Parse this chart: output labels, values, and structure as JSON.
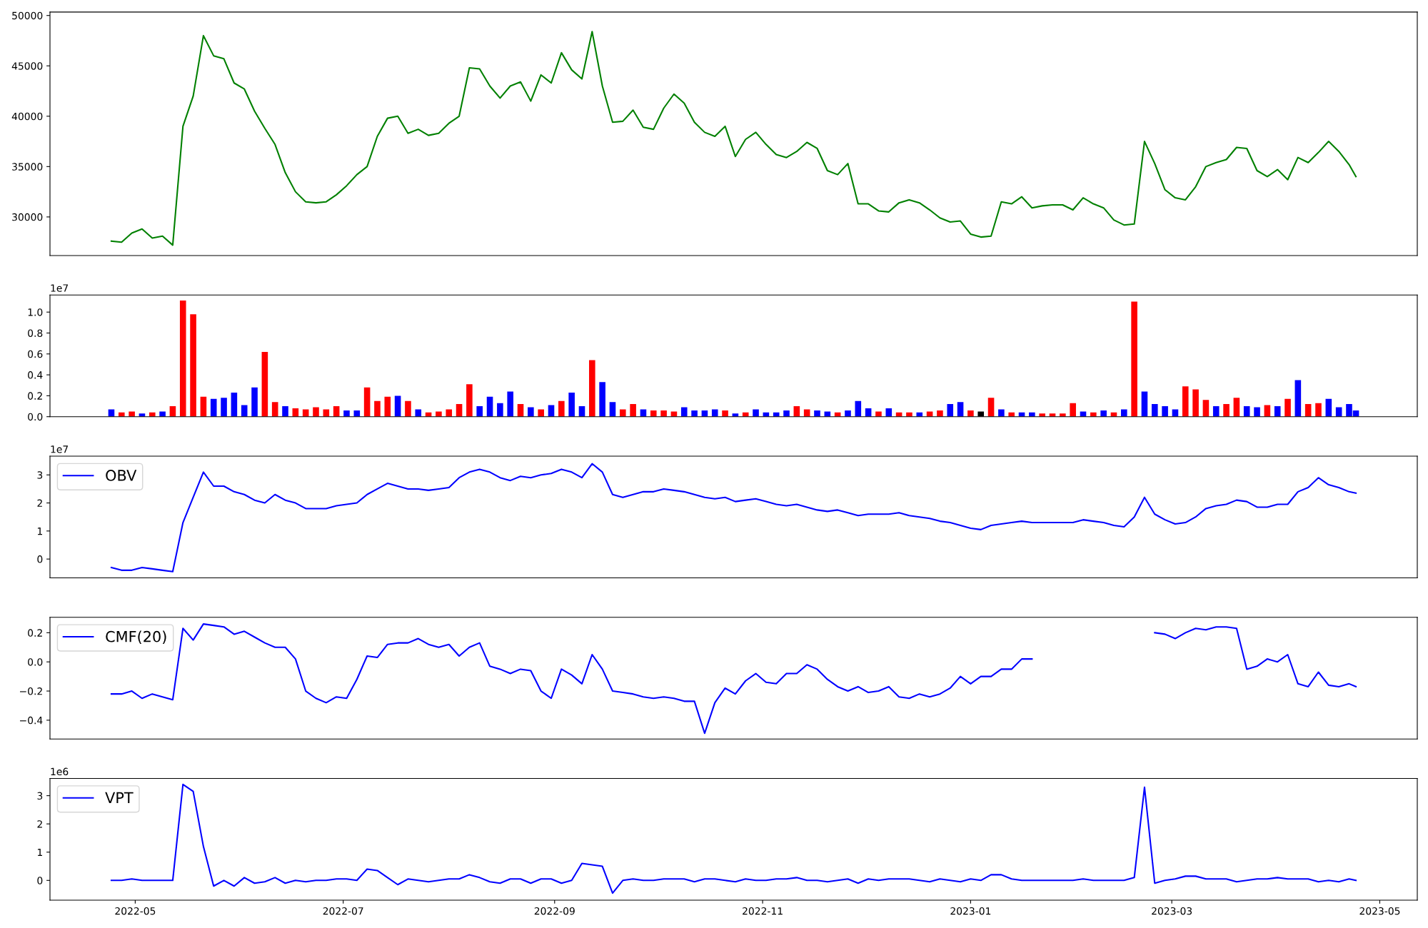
{
  "chart_data": [
    {
      "type": "line",
      "xlim": [
        "2022-04-06",
        "2023-05-12"
      ],
      "ylim": [
        26170,
        50340
      ],
      "yticks": [
        30000,
        35000,
        40000,
        45000,
        50000
      ],
      "tick_labels": "y",
      "legend": false,
      "grid": false,
      "x": [
        "2022-04-24",
        "2022-04-27",
        "2022-04-30",
        "2022-05-03",
        "2022-05-06",
        "2022-05-09",
        "2022-05-12",
        "2022-05-15",
        "2022-05-18",
        "2022-05-21",
        "2022-05-24",
        "2022-05-27",
        "2022-05-30",
        "2022-06-02",
        "2022-06-05",
        "2022-06-08",
        "2022-06-11",
        "2022-06-14",
        "2022-06-17",
        "2022-06-20",
        "2022-06-23",
        "2022-06-26",
        "2022-06-29",
        "2022-07-02",
        "2022-07-05",
        "2022-07-08",
        "2022-07-11",
        "2022-07-14",
        "2022-07-17",
        "2022-07-20",
        "2022-07-23",
        "2022-07-26",
        "2022-07-29",
        "2022-08-01",
        "2022-08-04",
        "2022-08-07",
        "2022-08-10",
        "2022-08-13",
        "2022-08-16",
        "2022-08-19",
        "2022-08-22",
        "2022-08-25",
        "2022-08-28",
        "2022-08-31",
        "2022-09-03",
        "2022-09-06",
        "2022-09-09",
        "2022-09-12",
        "2022-09-15",
        "2022-09-18",
        "2022-09-21",
        "2022-09-24",
        "2022-09-27",
        "2022-09-30",
        "2022-10-03",
        "2022-10-06",
        "2022-10-09",
        "2022-10-12",
        "2022-10-15",
        "2022-10-18",
        "2022-10-21",
        "2022-10-24",
        "2022-10-27",
        "2022-10-30",
        "2022-11-02",
        "2022-11-05",
        "2022-11-08",
        "2022-11-11",
        "2022-11-14",
        "2022-11-17",
        "2022-11-20",
        "2022-11-23",
        "2022-11-26",
        "2022-11-29",
        "2022-12-02",
        "2022-12-05",
        "2022-12-08",
        "2022-12-11",
        "2022-12-14",
        "2022-12-17",
        "2022-12-20",
        "2022-12-23",
        "2022-12-26",
        "2022-12-29",
        "2023-01-01",
        "2023-01-04",
        "2023-01-07",
        "2023-01-10",
        "2023-01-13",
        "2023-01-16",
        "2023-01-19",
        "2023-01-22",
        "2023-01-25",
        "2023-01-28",
        "2023-01-31",
        "2023-02-03",
        "2023-02-06",
        "2023-02-09",
        "2023-02-12",
        "2023-02-15",
        "2023-02-18",
        "2023-02-21",
        "2023-02-24",
        "2023-02-27",
        "2023-03-02",
        "2023-03-05",
        "2023-03-08",
        "2023-03-11",
        "2023-03-14",
        "2023-03-17",
        "2023-03-20",
        "2023-03-23",
        "2023-03-26",
        "2023-03-29",
        "2023-04-01",
        "2023-04-04",
        "2023-04-07",
        "2023-04-10",
        "2023-04-13",
        "2023-04-16",
        "2023-04-19",
        "2023-04-22",
        "2023-04-24"
      ],
      "series": [
        {
          "color": "#008000",
          "values": [
            27600,
            27500,
            28400,
            28800,
            27900,
            28100,
            27200,
            39000,
            42000,
            48000,
            46000,
            45700,
            43300,
            42700,
            40500,
            38800,
            37200,
            34400,
            32500,
            31500,
            31400,
            31500,
            32200,
            33100,
            34200,
            35000,
            38000,
            39800,
            40000,
            38300,
            38700,
            38100,
            38300,
            39300,
            40000,
            44800,
            44700,
            43000,
            41800,
            43000,
            43400,
            41500,
            44100,
            43300,
            46300,
            44600,
            43700,
            48400,
            43000,
            39400,
            39500,
            40600,
            38900,
            38700,
            40800,
            42200,
            41300,
            39400,
            38400,
            38000,
            39000,
            36000,
            37700,
            38400,
            37200,
            36200,
            35900,
            36500,
            37400,
            36800,
            34600,
            34200,
            35300,
            31300,
            31300,
            30600,
            30500,
            31400,
            31700,
            31400,
            30700,
            29900,
            29500,
            29600,
            28300,
            28000,
            28100,
            31500,
            31300,
            32000,
            30900,
            31100,
            31200,
            31200,
            30700,
            31900,
            31300,
            30900,
            29700,
            29200,
            29300,
            37500,
            35300,
            32700,
            31900,
            31700,
            33000,
            35000,
            35400,
            35700,
            36900,
            36800,
            34600,
            34000,
            34700,
            33700,
            35900,
            35400,
            36400,
            37500,
            36500,
            35200,
            34000
          ]
        }
      ]
    },
    {
      "type": "bar",
      "xlim": [
        "2022-04-06",
        "2023-05-12"
      ],
      "ylim": [
        0,
        1.164
      ],
      "yticks": [
        {
          "value": 0,
          "label": "0.0"
        },
        0.2,
        0.4,
        0.6,
        0.8,
        {
          "value": 1,
          "label": "1.0"
        }
      ],
      "tick_labels": "y",
      "legend": false,
      "grid": false,
      "annotations": [
        "1e7"
      ],
      "x": [
        "2022-04-24",
        "2022-04-27",
        "2022-04-30",
        "2022-05-03",
        "2022-05-06",
        "2022-05-09",
        "2022-05-12",
        "2022-05-15",
        "2022-05-18",
        "2022-05-21",
        "2022-05-24",
        "2022-05-27",
        "2022-05-30",
        "2022-06-02",
        "2022-06-05",
        "2022-06-08",
        "2022-06-11",
        "2022-06-14",
        "2022-06-17",
        "2022-06-20",
        "2022-06-23",
        "2022-06-26",
        "2022-06-29",
        "2022-07-02",
        "2022-07-05",
        "2022-07-08",
        "2022-07-11",
        "2022-07-14",
        "2022-07-17",
        "2022-07-20",
        "2022-07-23",
        "2022-07-26",
        "2022-07-29",
        "2022-08-01",
        "2022-08-04",
        "2022-08-07",
        "2022-08-10",
        "2022-08-13",
        "2022-08-16",
        "2022-08-19",
        "2022-08-22",
        "2022-08-25",
        "2022-08-28",
        "2022-08-31",
        "2022-09-03",
        "2022-09-06",
        "2022-09-09",
        "2022-09-12",
        "2022-09-15",
        "2022-09-18",
        "2022-09-21",
        "2022-09-24",
        "2022-09-27",
        "2022-09-30",
        "2022-10-03",
        "2022-10-06",
        "2022-10-09",
        "2022-10-12",
        "2022-10-15",
        "2022-10-18",
        "2022-10-21",
        "2022-10-24",
        "2022-10-27",
        "2022-10-30",
        "2022-11-02",
        "2022-11-05",
        "2022-11-08",
        "2022-11-11",
        "2022-11-14",
        "2022-11-17",
        "2022-11-20",
        "2022-11-23",
        "2022-11-26",
        "2022-11-29",
        "2022-12-02",
        "2022-12-05",
        "2022-12-08",
        "2022-12-11",
        "2022-12-14",
        "2022-12-17",
        "2022-12-20",
        "2022-12-23",
        "2022-12-26",
        "2022-12-29",
        "2023-01-01",
        "2023-01-04",
        "2023-01-07",
        "2023-01-10",
        "2023-01-13",
        "2023-01-16",
        "2023-01-19",
        "2023-01-22",
        "2023-01-25",
        "2023-01-28",
        "2023-01-31",
        "2023-02-03",
        "2023-02-06",
        "2023-02-09",
        "2023-02-12",
        "2023-02-15",
        "2023-02-18",
        "2023-02-21",
        "2023-02-24",
        "2023-02-27",
        "2023-03-02",
        "2023-03-05",
        "2023-03-08",
        "2023-03-11",
        "2023-03-14",
        "2023-03-17",
        "2023-03-20",
        "2023-03-23",
        "2023-03-26",
        "2023-03-29",
        "2023-04-01",
        "2023-04-04",
        "2023-04-07",
        "2023-04-10",
        "2023-04-13",
        "2023-04-16",
        "2023-04-19",
        "2023-04-22",
        "2023-04-24"
      ],
      "values": [
        0.07,
        0.04,
        0.05,
        0.03,
        0.04,
        0.05,
        0.1,
        1.11,
        0.98,
        0.19,
        0.17,
        0.18,
        0.23,
        0.11,
        0.28,
        0.62,
        0.14,
        0.1,
        0.08,
        0.07,
        0.09,
        0.07,
        0.1,
        0.06,
        0.06,
        0.28,
        0.15,
        0.19,
        0.2,
        0.15,
        0.07,
        0.04,
        0.05,
        0.07,
        0.12,
        0.31,
        0.1,
        0.19,
        0.13,
        0.24,
        0.12,
        0.09,
        0.07,
        0.11,
        0.15,
        0.23,
        0.1,
        0.54,
        0.33,
        0.14,
        0.07,
        0.12,
        0.07,
        0.06,
        0.06,
        0.05,
        0.09,
        0.06,
        0.06,
        0.07,
        0.06,
        0.03,
        0.04,
        0.07,
        0.04,
        0.04,
        0.06,
        0.1,
        0.07,
        0.06,
        0.05,
        0.04,
        0.06,
        0.15,
        0.08,
        0.05,
        0.08,
        0.04,
        0.04,
        0.04,
        0.05,
        0.06,
        0.12,
        0.14,
        0.06,
        0.05,
        0.18,
        0.07,
        0.04,
        0.04,
        0.04,
        0.03,
        0.03,
        0.03,
        0.13,
        0.05,
        0.04,
        0.06,
        0.04,
        0.07,
        1.1,
        0.24,
        0.12,
        0.1,
        0.07,
        0.29,
        0.26,
        0.16,
        0.1,
        0.12,
        0.18,
        0.1,
        0.09,
        0.11,
        0.1,
        0.17,
        0.35,
        0.12,
        0.13,
        0.17,
        0.09,
        0.12,
        0.06
      ],
      "colors": [
        "#0000ff",
        "#ff0000",
        "#ff0000",
        "#0000ff",
        "#ff0000",
        "#0000ff",
        "#ff0000",
        "#ff0000",
        "#ff0000",
        "#ff0000",
        "#0000ff",
        "#0000ff",
        "#0000ff",
        "#0000ff",
        "#0000ff",
        "#ff0000",
        "#ff0000",
        "#0000ff",
        "#ff0000",
        "#ff0000",
        "#ff0000",
        "#ff0000",
        "#ff0000",
        "#0000ff",
        "#0000ff",
        "#ff0000",
        "#ff0000",
        "#ff0000",
        "#0000ff",
        "#ff0000",
        "#0000ff",
        "#ff0000",
        "#ff0000",
        "#ff0000",
        "#ff0000",
        "#ff0000",
        "#0000ff",
        "#0000ff",
        "#0000ff",
        "#0000ff",
        "#ff0000",
        "#0000ff",
        "#ff0000",
        "#0000ff",
        "#ff0000",
        "#0000ff",
        "#0000ff",
        "#ff0000",
        "#0000ff",
        "#0000ff",
        "#ff0000",
        "#ff0000",
        "#0000ff",
        "#ff0000",
        "#ff0000",
        "#ff0000",
        "#0000ff",
        "#0000ff",
        "#0000ff",
        "#0000ff",
        "#ff0000",
        "#0000ff",
        "#ff0000",
        "#0000ff",
        "#0000ff",
        "#0000ff",
        "#0000ff",
        "#ff0000",
        "#ff0000",
        "#0000ff",
        "#0000ff",
        "#ff0000",
        "#0000ff",
        "#0000ff",
        "#0000ff",
        "#ff0000",
        "#0000ff",
        "#ff0000",
        "#ff0000",
        "#0000ff",
        "#ff0000",
        "#ff0000",
        "#0000ff",
        "#0000ff",
        "#ff0000",
        "#000000",
        "#ff0000",
        "#0000ff",
        "#ff0000",
        "#0000ff",
        "#0000ff",
        "#ff0000",
        "#ff0000",
        "#ff0000",
        "#ff0000",
        "#0000ff",
        "#ff0000",
        "#0000ff",
        "#ff0000",
        "#0000ff",
        "#ff0000",
        "#0000ff",
        "#0000ff",
        "#0000ff",
        "#0000ff",
        "#ff0000",
        "#ff0000",
        "#ff0000",
        "#0000ff",
        "#ff0000",
        "#ff0000",
        "#0000ff",
        "#0000ff",
        "#ff0000",
        "#0000ff",
        "#ff0000",
        "#0000ff",
        "#ff0000",
        "#ff0000",
        "#0000ff",
        "#0000ff",
        "#0000ff",
        "#0000ff"
      ]
    },
    {
      "type": "line",
      "xlim": [
        "2022-04-06",
        "2023-05-12"
      ],
      "ylim": [
        -0.67,
        3.67
      ],
      "yticks": [
        0,
        1,
        2,
        3
      ],
      "tick_labels": "y",
      "legend": "top left",
      "grid": false,
      "annotations": [
        "1e7"
      ],
      "x": [
        "2022-04-24",
        "2022-04-27",
        "2022-04-30",
        "2022-05-03",
        "2022-05-06",
        "2022-05-09",
        "2022-05-12",
        "2022-05-15",
        "2022-05-18",
        "2022-05-21",
        "2022-05-24",
        "2022-05-27",
        "2022-05-30",
        "2022-06-02",
        "2022-06-05",
        "2022-06-08",
        "2022-06-11",
        "2022-06-14",
        "2022-06-17",
        "2022-06-20",
        "2022-06-23",
        "2022-06-26",
        "2022-06-29",
        "2022-07-02",
        "2022-07-05",
        "2022-07-08",
        "2022-07-11",
        "2022-07-14",
        "2022-07-17",
        "2022-07-20",
        "2022-07-23",
        "2022-07-26",
        "2022-07-29",
        "2022-08-01",
        "2022-08-04",
        "2022-08-07",
        "2022-08-10",
        "2022-08-13",
        "2022-08-16",
        "2022-08-19",
        "2022-08-22",
        "2022-08-25",
        "2022-08-28",
        "2022-08-31",
        "2022-09-03",
        "2022-09-06",
        "2022-09-09",
        "2022-09-12",
        "2022-09-15",
        "2022-09-18",
        "2022-09-21",
        "2022-09-24",
        "2022-09-27",
        "2022-09-30",
        "2022-10-03",
        "2022-10-06",
        "2022-10-09",
        "2022-10-12",
        "2022-10-15",
        "2022-10-18",
        "2022-10-21",
        "2022-10-24",
        "2022-10-27",
        "2022-10-30",
        "2022-11-02",
        "2022-11-05",
        "2022-11-08",
        "2022-11-11",
        "2022-11-14",
        "2022-11-17",
        "2022-11-20",
        "2022-11-23",
        "2022-11-26",
        "2022-11-29",
        "2022-12-02",
        "2022-12-05",
        "2022-12-08",
        "2022-12-11",
        "2022-12-14",
        "2022-12-17",
        "2022-12-20",
        "2022-12-23",
        "2022-12-26",
        "2022-12-29",
        "2023-01-01",
        "2023-01-04",
        "2023-01-07",
        "2023-01-10",
        "2023-01-13",
        "2023-01-16",
        "2023-01-19",
        "2023-01-22",
        "2023-01-25",
        "2023-01-28",
        "2023-01-31",
        "2023-02-03",
        "2023-02-06",
        "2023-02-09",
        "2023-02-12",
        "2023-02-15",
        "2023-02-18",
        "2023-02-21",
        "2023-02-24",
        "2023-02-27",
        "2023-03-02",
        "2023-03-05",
        "2023-03-08",
        "2023-03-11",
        "2023-03-14",
        "2023-03-17",
        "2023-03-20",
        "2023-03-23",
        "2023-03-26",
        "2023-03-29",
        "2023-04-01",
        "2023-04-04",
        "2023-04-07",
        "2023-04-10",
        "2023-04-13",
        "2023-04-16",
        "2023-04-19",
        "2023-04-22",
        "2023-04-24"
      ],
      "series": [
        {
          "name": "OBV",
          "color": "#0000ff",
          "values": [
            -0.3,
            -0.4,
            -0.4,
            -0.3,
            -0.35,
            -0.4,
            -0.45,
            1.3,
            2.2,
            3.1,
            2.6,
            2.6,
            2.4,
            2.3,
            2.1,
            2.0,
            2.3,
            2.1,
            2.0,
            1.8,
            1.8,
            1.8,
            1.9,
            1.95,
            2.0,
            2.3,
            2.5,
            2.7,
            2.6,
            2.5,
            2.5,
            2.45,
            2.5,
            2.55,
            2.9,
            3.1,
            3.2,
            3.1,
            2.9,
            2.8,
            2.95,
            2.9,
            3.0,
            3.05,
            3.2,
            3.1,
            2.9,
            3.4,
            3.1,
            2.3,
            2.2,
            2.3,
            2.4,
            2.4,
            2.5,
            2.45,
            2.4,
            2.3,
            2.2,
            2.15,
            2.2,
            2.05,
            2.1,
            2.15,
            2.05,
            1.95,
            1.9,
            1.95,
            1.85,
            1.75,
            1.7,
            1.75,
            1.65,
            1.55,
            1.6,
            1.6,
            1.6,
            1.65,
            1.55,
            1.5,
            1.45,
            1.35,
            1.3,
            1.2,
            1.1,
            1.05,
            1.2,
            1.25,
            1.3,
            1.35,
            1.3,
            1.3,
            1.3,
            1.3,
            1.3,
            1.4,
            1.35,
            1.3,
            1.2,
            1.15,
            1.5,
            2.2,
            1.6,
            1.4,
            1.25,
            1.3,
            1.5,
            1.8,
            1.9,
            1.95,
            2.1,
            2.05,
            1.85,
            1.85,
            1.95,
            1.95,
            2.4,
            2.55,
            2.9,
            2.65,
            2.55,
            2.4,
            2.35
          ]
        }
      ]
    },
    {
      "type": "line",
      "xlim": [
        "2022-04-06",
        "2023-05-12"
      ],
      "ylim": [
        -0.529,
        0.306
      ],
      "yticks": [
        {
          "value": -0.4,
          "label": "−0.4"
        },
        {
          "value": -0.2,
          "label": "−0.2"
        },
        {
          "value": 0.0,
          "label": "0.0"
        },
        {
          "value": 0.2,
          "label": "0.2"
        }
      ],
      "tick_labels": "y",
      "legend": "top left",
      "grid": false,
      "x": [
        "2022-04-24",
        "2022-04-27",
        "2022-04-30",
        "2022-05-03",
        "2022-05-06",
        "2022-05-09",
        "2022-05-12",
        "2022-05-15",
        "2022-05-18",
        "2022-05-21",
        "2022-05-24",
        "2022-05-27",
        "2022-05-30",
        "2022-06-02",
        "2022-06-05",
        "2022-06-08",
        "2022-06-11",
        "2022-06-14",
        "2022-06-17",
        "2022-06-20",
        "2022-06-23",
        "2022-06-26",
        "2022-06-29",
        "2022-07-02",
        "2022-07-05",
        "2022-07-08",
        "2022-07-11",
        "2022-07-14",
        "2022-07-17",
        "2022-07-20",
        "2022-07-23",
        "2022-07-26",
        "2022-07-29",
        "2022-08-01",
        "2022-08-04",
        "2022-08-07",
        "2022-08-10",
        "2022-08-13",
        "2022-08-16",
        "2022-08-19",
        "2022-08-22",
        "2022-08-25",
        "2022-08-28",
        "2022-08-31",
        "2022-09-03",
        "2022-09-06",
        "2022-09-09",
        "2022-09-12",
        "2022-09-15",
        "2022-09-18",
        "2022-09-21",
        "2022-09-24",
        "2022-09-27",
        "2022-09-30",
        "2022-10-03",
        "2022-10-06",
        "2022-10-09",
        "2022-10-12",
        "2022-10-15",
        "2022-10-18",
        "2022-10-21",
        "2022-10-24",
        "2022-10-27",
        "2022-10-30",
        "2022-11-02",
        "2022-11-05",
        "2022-11-08",
        "2022-11-11",
        "2022-11-14",
        "2022-11-17",
        "2022-11-20",
        "2022-11-23",
        "2022-11-26",
        "2022-11-29",
        "2022-12-02",
        "2022-12-05",
        "2022-12-08",
        "2022-12-11",
        "2022-12-14",
        "2022-12-17",
        "2022-12-20",
        "2022-12-23",
        "2022-12-26",
        "2022-12-29",
        "2023-01-01",
        "2023-01-04",
        "2023-01-07",
        "2023-01-10",
        "2023-01-13",
        "2023-01-16",
        "2023-01-19",
        "2023-01-22",
        "2023-01-25",
        "2023-01-28",
        "2023-01-31",
        "2023-02-03",
        "2023-02-06",
        "2023-02-09",
        "2023-02-12",
        "2023-02-15",
        "2023-02-18",
        "2023-02-21",
        "2023-02-24",
        "2023-02-27",
        "2023-03-02",
        "2023-03-05",
        "2023-03-08",
        "2023-03-11",
        "2023-03-14",
        "2023-03-17",
        "2023-03-20",
        "2023-03-23",
        "2023-03-26",
        "2023-03-29",
        "2023-04-01",
        "2023-04-04",
        "2023-04-07",
        "2023-04-10",
        "2023-04-13",
        "2023-04-16",
        "2023-04-19",
        "2023-04-22",
        "2023-04-24"
      ],
      "series": [
        {
          "name": "CMF(20)",
          "color": "#0000ff",
          "values": [
            -0.22,
            -0.22,
            -0.2,
            -0.25,
            -0.22,
            -0.24,
            -0.26,
            0.23,
            0.15,
            0.26,
            0.25,
            0.24,
            0.19,
            0.21,
            0.17,
            0.13,
            0.1,
            0.1,
            0.02,
            -0.2,
            -0.25,
            -0.28,
            -0.24,
            -0.25,
            -0.12,
            0.04,
            0.03,
            0.12,
            0.13,
            0.13,
            0.16,
            0.12,
            0.1,
            0.12,
            0.04,
            0.1,
            0.13,
            -0.03,
            -0.05,
            -0.08,
            -0.05,
            -0.06,
            -0.2,
            -0.25,
            -0.05,
            -0.09,
            -0.15,
            0.05,
            -0.05,
            -0.2,
            -0.21,
            -0.22,
            -0.24,
            -0.25,
            -0.24,
            -0.25,
            -0.27,
            -0.27,
            -0.49,
            -0.28,
            -0.18,
            -0.22,
            -0.13,
            -0.08,
            -0.14,
            -0.15,
            -0.08,
            -0.08,
            -0.02,
            -0.05,
            -0.12,
            -0.17,
            -0.2,
            -0.17,
            -0.21,
            -0.2,
            -0.17,
            -0.24,
            -0.25,
            -0.22,
            -0.24,
            -0.22,
            -0.18,
            -0.1,
            -0.15,
            -0.1,
            -0.1,
            -0.05,
            -0.05,
            0.02,
            0.02,
            null,
            null,
            null,
            null,
            null,
            null,
            null,
            null,
            null,
            null,
            null,
            0.2,
            0.19,
            0.16,
            0.2,
            0.23,
            0.22,
            0.24,
            0.24,
            0.23,
            -0.05,
            -0.03,
            0.02,
            0.0,
            0.05,
            -0.15,
            -0.17,
            -0.07,
            -0.16,
            -0.17,
            -0.15,
            -0.17
          ]
        }
      ]
    },
    {
      "type": "line",
      "xlim": [
        "2022-04-06",
        "2023-05-12"
      ],
      "ylim": [
        -0.7,
        3.61
      ],
      "yticks": [
        0,
        1,
        2,
        3
      ],
      "xticks": [
        {
          "value": "2022-05",
          "label": "2022-05"
        },
        {
          "value": "2022-07",
          "label": "2022-07"
        },
        {
          "value": "2022-09",
          "label": "2022-09"
        },
        {
          "value": "2022-11",
          "label": "2022-11"
        },
        {
          "value": "2023-01",
          "label": "2023-01"
        },
        {
          "value": "2023-03",
          "label": "2023-03"
        },
        {
          "value": "2023-05",
          "label": "2023-05"
        }
      ],
      "legend": "top left",
      "grid": false,
      "annotations": [
        "1e6"
      ],
      "x": [
        "2022-04-24",
        "2022-04-27",
        "2022-04-30",
        "2022-05-03",
        "2022-05-06",
        "2022-05-09",
        "2022-05-12",
        "2022-05-15",
        "2022-05-18",
        "2022-05-21",
        "2022-05-24",
        "2022-05-27",
        "2022-05-30",
        "2022-06-02",
        "2022-06-05",
        "2022-06-08",
        "2022-06-11",
        "2022-06-14",
        "2022-06-17",
        "2022-06-20",
        "2022-06-23",
        "2022-06-26",
        "2022-06-29",
        "2022-07-02",
        "2022-07-05",
        "2022-07-08",
        "2022-07-11",
        "2022-07-14",
        "2022-07-17",
        "2022-07-20",
        "2022-07-23",
        "2022-07-26",
        "2022-07-29",
        "2022-08-01",
        "2022-08-04",
        "2022-08-07",
        "2022-08-10",
        "2022-08-13",
        "2022-08-16",
        "2022-08-19",
        "2022-08-22",
        "2022-08-25",
        "2022-08-28",
        "2022-08-31",
        "2022-09-03",
        "2022-09-06",
        "2022-09-09",
        "2022-09-12",
        "2022-09-15",
        "2022-09-18",
        "2022-09-21",
        "2022-09-24",
        "2022-09-27",
        "2022-09-30",
        "2022-10-03",
        "2022-10-06",
        "2022-10-09",
        "2022-10-12",
        "2022-10-15",
        "2022-10-18",
        "2022-10-21",
        "2022-10-24",
        "2022-10-27",
        "2022-10-30",
        "2022-11-02",
        "2022-11-05",
        "2022-11-08",
        "2022-11-11",
        "2022-11-14",
        "2022-11-17",
        "2022-11-20",
        "2022-11-23",
        "2022-11-26",
        "2022-11-29",
        "2022-12-02",
        "2022-12-05",
        "2022-12-08",
        "2022-12-11",
        "2022-12-14",
        "2022-12-17",
        "2022-12-20",
        "2022-12-23",
        "2022-12-26",
        "2022-12-29",
        "2023-01-01",
        "2023-01-04",
        "2023-01-07",
        "2023-01-10",
        "2023-01-13",
        "2023-01-16",
        "2023-01-19",
        "2023-01-22",
        "2023-01-25",
        "2023-01-28",
        "2023-01-31",
        "2023-02-03",
        "2023-02-06",
        "2023-02-09",
        "2023-02-12",
        "2023-02-15",
        "2023-02-18",
        "2023-02-21",
        "2023-02-24",
        "2023-02-27",
        "2023-03-02",
        "2023-03-05",
        "2023-03-08",
        "2023-03-11",
        "2023-03-14",
        "2023-03-17",
        "2023-03-20",
        "2023-03-23",
        "2023-03-26",
        "2023-03-29",
        "2023-04-01",
        "2023-04-04",
        "2023-04-07",
        "2023-04-10",
        "2023-04-13",
        "2023-04-16",
        "2023-04-19",
        "2023-04-22",
        "2023-04-24"
      ],
      "series": [
        {
          "name": "VPT",
          "color": "#0000ff",
          "values": [
            0,
            0,
            0.05,
            0,
            0,
            0,
            0,
            3.4,
            3.15,
            1.2,
            -0.2,
            0,
            -0.2,
            0.1,
            -0.1,
            -0.05,
            0.1,
            -0.1,
            0,
            -0.05,
            0,
            0,
            0.05,
            0.05,
            0,
            0.4,
            0.35,
            0.1,
            -0.15,
            0.05,
            0,
            -0.05,
            0,
            0.05,
            0.05,
            0.2,
            0.1,
            -0.05,
            -0.1,
            0.05,
            0.05,
            -0.1,
            0.05,
            0.05,
            -0.1,
            0,
            0.6,
            0.55,
            0.5,
            -0.45,
            0,
            0.05,
            0,
            0,
            0.05,
            0.05,
            0.05,
            -0.05,
            0.05,
            0.05,
            0,
            -0.05,
            0.05,
            0,
            0,
            0.05,
            0.05,
            0.1,
            0,
            0,
            -0.05,
            0,
            0.05,
            -0.1,
            0.05,
            0,
            0.05,
            0.05,
            0.05,
            0,
            -0.05,
            0.05,
            0,
            -0.05,
            0.05,
            0,
            0.2,
            0.2,
            0.05,
            0,
            0,
            0,
            0,
            0,
            0,
            0.05,
            0,
            0,
            0,
            0,
            0.1,
            3.3,
            -0.1,
            0,
            0.05,
            0.15,
            0.15,
            0.05,
            0.05,
            0.05,
            -0.05,
            0,
            0.05,
            0.05,
            0.1,
            0.05,
            0.05,
            0.05,
            -0.05,
            0,
            -0.05,
            0.05,
            0
          ]
        }
      ]
    }
  ]
}
